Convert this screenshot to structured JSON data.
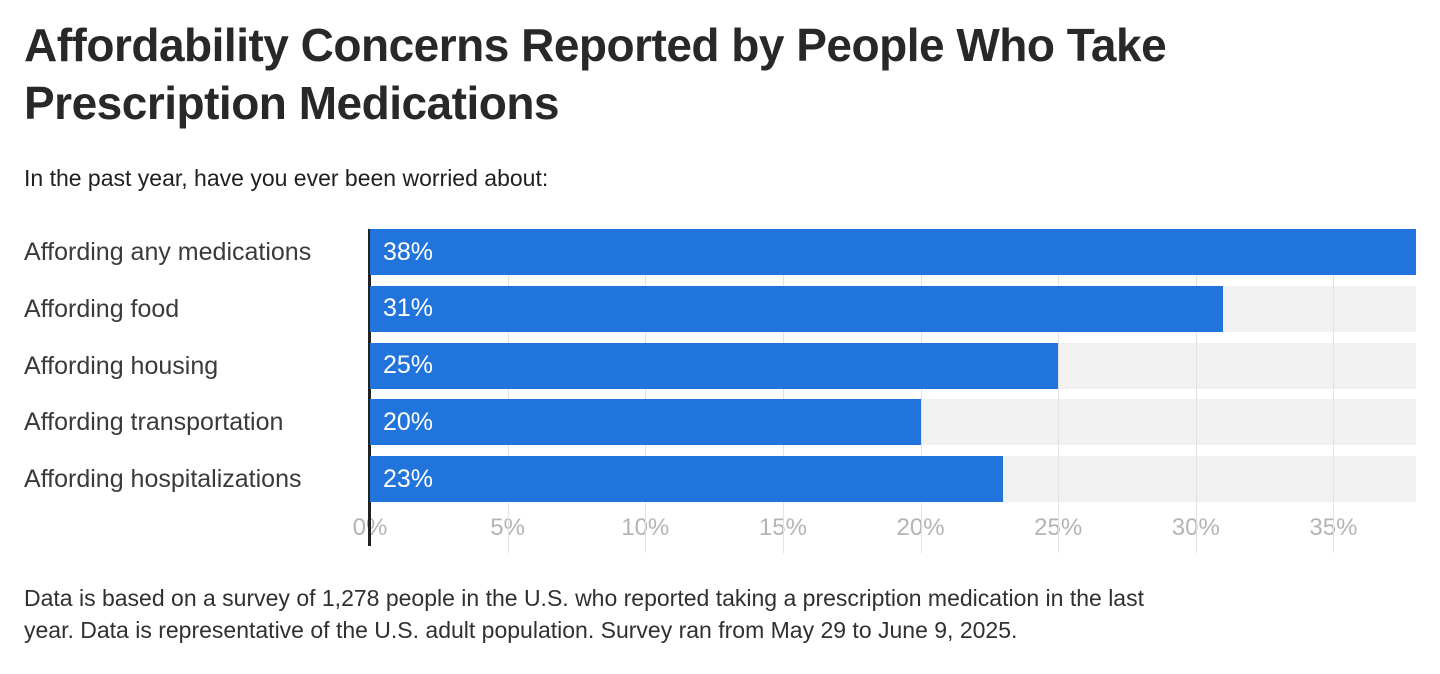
{
  "header": {
    "title_lines": [
      "Affordability Concerns Reported by People Who Take",
      "Prescription Medications"
    ],
    "subtitle": "In the past year, have you ever been worried about:"
  },
  "chart_data": {
    "type": "bar",
    "orientation": "horizontal",
    "title": "Affordability Concerns Reported by People Who Take Prescription Medications",
    "question": "In the past year, have you ever been worried about:",
    "categories": [
      "Affording any medications",
      "Affording food",
      "Affording housing",
      "Affording transportation",
      "Affording hospitalizations"
    ],
    "values": [
      38,
      31,
      25,
      20,
      23
    ],
    "value_labels": [
      "38%",
      "31%",
      "25%",
      "20%",
      "23%"
    ],
    "x_ticks": [
      0,
      5,
      10,
      15,
      20,
      25,
      30,
      35
    ],
    "x_tick_labels": [
      "0%",
      "5%",
      "10%",
      "15%",
      "20%",
      "25%",
      "30%",
      "35%"
    ],
    "xlim": [
      0,
      38
    ],
    "grid": true,
    "legend": "none",
    "colors": {
      "bar": "#2174DB",
      "bar_value_text": "#ffffff",
      "row_track": "#f1f1f1",
      "gridline": "#e2e2e2",
      "axis_line": "#222222",
      "tick_label": "#b4b4b4",
      "category_label": "#3a3a3a"
    }
  },
  "footnote": {
    "lines": [
      "Data is based on a survey of 1,278 people in the U.S. who reported taking a prescription medication in the last",
      "year. Data is representative of the U.S. adult population. Survey ran from May 29 to June 9, 2025."
    ]
  }
}
